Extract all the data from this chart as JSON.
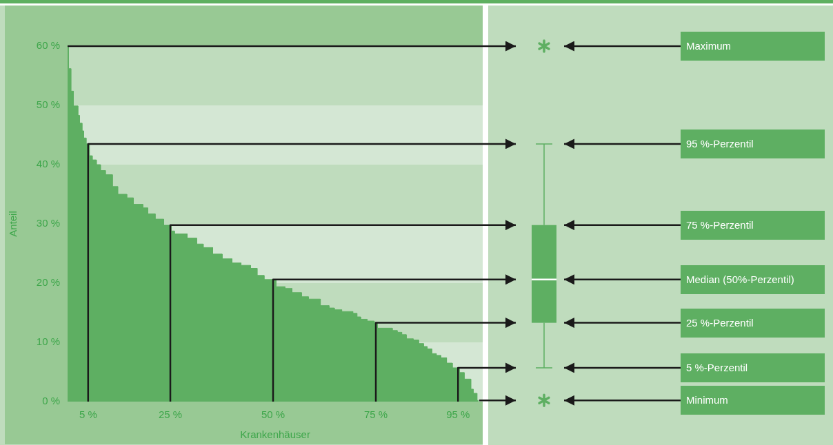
{
  "chart_data": {
    "type": "area",
    "xlabel": "Krankenhäuser",
    "ylabel": "Anteil",
    "color": "#5eaf62",
    "bands": [
      {
        "axis": "y",
        "from": 10,
        "to": 20,
        "color": "#bfdcbd"
      },
      {
        "axis": "y",
        "from": 30,
        "to": 40,
        "color": "#bfdcbd"
      },
      {
        "axis": "y",
        "from": 50,
        "to": 60,
        "color": "#bfdcbd"
      }
    ],
    "x": [
      0,
      0.2,
      0.2,
      0.8,
      0.8,
      1.4,
      1.4,
      2.5,
      2.5,
      2.9,
      2.9,
      3.5,
      3.5,
      3.9,
      3.9,
      4.5,
      4.5,
      5.3,
      5.3,
      6,
      6,
      7,
      7,
      8,
      8,
      9.2,
      9.2,
      10.9,
      10.9,
      12.2,
      12.2,
      14.4,
      14.4,
      16,
      16,
      18.3,
      18.3,
      19.5,
      19.5,
      21.3,
      21.3,
      23.4,
      23.4,
      25.2,
      25.2,
      26,
      26,
      29.1,
      29.1,
      31.4,
      31.4,
      33,
      33,
      35.3,
      35.3,
      37.6,
      37.6,
      40,
      40,
      42.2,
      42.2,
      44.5,
      44.5,
      46.1,
      46.1,
      47.8,
      47.8,
      50.7,
      50.7,
      52.9,
      52.9,
      54.6,
      54.6,
      56.9,
      56.9,
      58.6,
      58.6,
      61.5,
      61.5,
      63.6,
      63.6,
      64.9,
      64.9,
      66.7,
      66.7,
      69.4,
      69.4,
      70.4,
      70.4,
      71.3,
      71.3,
      72.9,
      72.9,
      74.6,
      74.6,
      75.4,
      75.4,
      79,
      79,
      80.2,
      80.2,
      81.3,
      81.3,
      82.4,
      82.4,
      84.1,
      84.1,
      85.4,
      85.4,
      86.6,
      86.6,
      87.5,
      87.5,
      88.6,
      88.6,
      89.7,
      89.7,
      90.8,
      90.8,
      92.2,
      92.2,
      93.6,
      93.6,
      95.3,
      95.3,
      96.5,
      96.5,
      98.1,
      98.1,
      98.7,
      98.7,
      99.6,
      99.6,
      100
    ],
    "values": [
      60,
      60,
      56.2,
      56.2,
      52.4,
      52.4,
      49.9,
      49.9,
      48.3,
      48.3,
      47,
      47,
      45.7,
      45.7,
      44.5,
      44.5,
      43.5,
      43.5,
      41.5,
      41.5,
      40.8,
      40.8,
      40,
      40,
      39,
      39,
      38.3,
      38.3,
      36.3,
      36.3,
      35,
      35,
      34.4,
      34.4,
      33.3,
      33.3,
      32.7,
      32.7,
      31.7,
      31.7,
      30.8,
      30.8,
      29.8,
      29.8,
      28.8,
      28.8,
      28.3,
      28.3,
      27.6,
      27.6,
      26.6,
      26.6,
      26,
      26,
      24.9,
      24.9,
      24.1,
      24.1,
      23.4,
      23.4,
      23,
      23,
      22.5,
      22.5,
      21.3,
      21.3,
      20.6,
      20.6,
      19.4,
      19.4,
      19.1,
      19.1,
      18.4,
      18.4,
      17.7,
      17.7,
      17.3,
      17.3,
      16.2,
      16.2,
      15.8,
      15.8,
      15.5,
      15.5,
      15.2,
      15.2,
      14.9,
      14.9,
      14.3,
      14.3,
      13.9,
      13.9,
      13.6,
      13.6,
      13.3,
      13.3,
      12.4,
      12.4,
      12,
      12,
      11.7,
      11.7,
      11.3,
      11.3,
      10.6,
      10.6,
      10.4,
      10.4,
      9.8,
      9.8,
      9.3,
      9.3,
      8.9,
      8.9,
      8.1,
      8.1,
      7.8,
      7.8,
      7.4,
      7.4,
      6.5,
      6.5,
      5.7,
      5.7,
      4.9,
      4.9,
      3.8,
      3.8,
      2.1,
      2.1,
      1.4,
      1.4,
      0.2,
      0.2
    ],
    "xlim": [
      0,
      101
    ],
    "xticks": [
      {
        "value": 5,
        "label": "5 %"
      },
      {
        "value": 25,
        "label": "25 %"
      },
      {
        "value": 50,
        "label": "50 %"
      },
      {
        "value": 75,
        "label": "75 %"
      },
      {
        "value": 95,
        "label": "95 %"
      }
    ],
    "ylim": [
      0,
      60
    ],
    "yticks": [
      {
        "value": 0,
        "label": "0 %"
      },
      {
        "value": 10,
        "label": "10 %"
      },
      {
        "value": 20,
        "label": "20 %"
      },
      {
        "value": 30,
        "label": "30 %"
      },
      {
        "value": 40,
        "label": "40 %"
      },
      {
        "value": 50,
        "label": "50 %"
      },
      {
        "value": 60,
        "label": "60 %"
      }
    ],
    "annotations": [
      "Maximum",
      "95 %-Perzentil",
      "75 %-Perzentil",
      "Median (50%-Perzentil)",
      "25 %-Perzentil",
      "5 %-Perzentil",
      "Minimum"
    ]
  }
}
